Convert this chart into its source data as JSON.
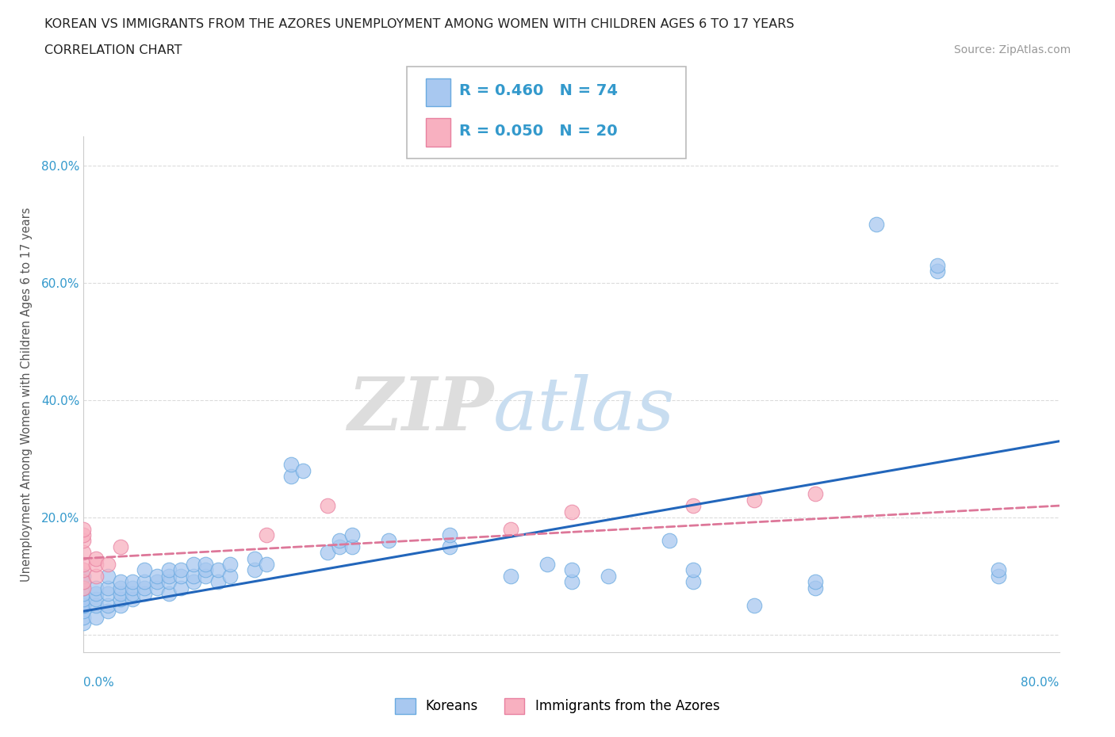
{
  "title": "KOREAN VS IMMIGRANTS FROM THE AZORES UNEMPLOYMENT AMONG WOMEN WITH CHILDREN AGES 6 TO 17 YEARS",
  "subtitle": "CORRELATION CHART",
  "source": "Source: ZipAtlas.com",
  "xlabel_bottom_left": "0.0%",
  "xlabel_bottom_right": "80.0%",
  "ylabel": "Unemployment Among Women with Children Ages 6 to 17 years",
  "xmin": 0.0,
  "xmax": 0.8,
  "ymin": -0.03,
  "ymax": 0.85,
  "y_ticks": [
    0.0,
    0.2,
    0.4,
    0.6,
    0.8
  ],
  "y_tick_labels": [
    "",
    "20.0%",
    "40.0%",
    "60.0%",
    "80.0%"
  ],
  "korean_color": "#a8c8f0",
  "azores_color": "#f8b0c0",
  "korean_edge": "#6aaae0",
  "azores_edge": "#e880a0",
  "korean_line_color": "#2266bb",
  "azores_line_color": "#dd7799",
  "background_color": "#ffffff",
  "grid_color": "#cccccc",
  "title_color": "#222222",
  "axis_label_color": "#3399cc",
  "korean_scatter": [
    [
      0.0,
      0.02
    ],
    [
      0.0,
      0.03
    ],
    [
      0.0,
      0.04
    ],
    [
      0.0,
      0.05
    ],
    [
      0.0,
      0.05
    ],
    [
      0.0,
      0.06
    ],
    [
      0.0,
      0.07
    ],
    [
      0.0,
      0.08
    ],
    [
      0.0,
      0.09
    ],
    [
      0.0,
      0.1
    ],
    [
      0.01,
      0.03
    ],
    [
      0.01,
      0.05
    ],
    [
      0.01,
      0.06
    ],
    [
      0.01,
      0.07
    ],
    [
      0.01,
      0.08
    ],
    [
      0.02,
      0.04
    ],
    [
      0.02,
      0.05
    ],
    [
      0.02,
      0.07
    ],
    [
      0.02,
      0.08
    ],
    [
      0.02,
      0.1
    ],
    [
      0.03,
      0.05
    ],
    [
      0.03,
      0.06
    ],
    [
      0.03,
      0.07
    ],
    [
      0.03,
      0.08
    ],
    [
      0.03,
      0.09
    ],
    [
      0.04,
      0.06
    ],
    [
      0.04,
      0.07
    ],
    [
      0.04,
      0.08
    ],
    [
      0.04,
      0.09
    ],
    [
      0.05,
      0.07
    ],
    [
      0.05,
      0.08
    ],
    [
      0.05,
      0.09
    ],
    [
      0.05,
      0.11
    ],
    [
      0.06,
      0.08
    ],
    [
      0.06,
      0.09
    ],
    [
      0.06,
      0.1
    ],
    [
      0.07,
      0.07
    ],
    [
      0.07,
      0.09
    ],
    [
      0.07,
      0.1
    ],
    [
      0.07,
      0.11
    ],
    [
      0.08,
      0.08
    ],
    [
      0.08,
      0.1
    ],
    [
      0.08,
      0.11
    ],
    [
      0.09,
      0.09
    ],
    [
      0.09,
      0.1
    ],
    [
      0.09,
      0.12
    ],
    [
      0.1,
      0.1
    ],
    [
      0.1,
      0.11
    ],
    [
      0.1,
      0.12
    ],
    [
      0.11,
      0.09
    ],
    [
      0.11,
      0.11
    ],
    [
      0.12,
      0.1
    ],
    [
      0.12,
      0.12
    ],
    [
      0.14,
      0.11
    ],
    [
      0.14,
      0.13
    ],
    [
      0.15,
      0.12
    ],
    [
      0.17,
      0.27
    ],
    [
      0.17,
      0.29
    ],
    [
      0.18,
      0.28
    ],
    [
      0.2,
      0.14
    ],
    [
      0.21,
      0.15
    ],
    [
      0.21,
      0.16
    ],
    [
      0.22,
      0.15
    ],
    [
      0.22,
      0.17
    ],
    [
      0.25,
      0.16
    ],
    [
      0.3,
      0.15
    ],
    [
      0.3,
      0.17
    ],
    [
      0.35,
      0.1
    ],
    [
      0.38,
      0.12
    ],
    [
      0.4,
      0.09
    ],
    [
      0.4,
      0.11
    ],
    [
      0.43,
      0.1
    ],
    [
      0.48,
      0.16
    ],
    [
      0.5,
      0.09
    ],
    [
      0.5,
      0.11
    ],
    [
      0.55,
      0.05
    ],
    [
      0.6,
      0.08
    ],
    [
      0.6,
      0.09
    ],
    [
      0.65,
      0.7
    ],
    [
      0.7,
      0.62
    ],
    [
      0.7,
      0.63
    ],
    [
      0.75,
      0.1
    ],
    [
      0.75,
      0.11
    ]
  ],
  "azores_scatter": [
    [
      0.0,
      0.08
    ],
    [
      0.0,
      0.09
    ],
    [
      0.0,
      0.11
    ],
    [
      0.0,
      0.12
    ],
    [
      0.0,
      0.14
    ],
    [
      0.0,
      0.16
    ],
    [
      0.0,
      0.17
    ],
    [
      0.0,
      0.18
    ],
    [
      0.01,
      0.1
    ],
    [
      0.01,
      0.12
    ],
    [
      0.01,
      0.13
    ],
    [
      0.02,
      0.12
    ],
    [
      0.03,
      0.15
    ],
    [
      0.15,
      0.17
    ],
    [
      0.2,
      0.22
    ],
    [
      0.35,
      0.18
    ],
    [
      0.4,
      0.21
    ],
    [
      0.5,
      0.22
    ],
    [
      0.55,
      0.23
    ],
    [
      0.6,
      0.24
    ]
  ],
  "korean_regression": [
    0.0,
    0.04,
    0.8,
    0.33
  ],
  "azores_regression": [
    0.0,
    0.13,
    0.8,
    0.22
  ]
}
